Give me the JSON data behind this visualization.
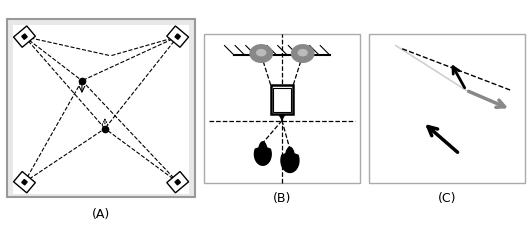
{
  "fig_width": 5.32,
  "fig_height": 2.3,
  "dpi": 100,
  "bg_color": "#ffffff",
  "label_A": "(A)",
  "label_B": "(B)",
  "label_C": "(C)"
}
